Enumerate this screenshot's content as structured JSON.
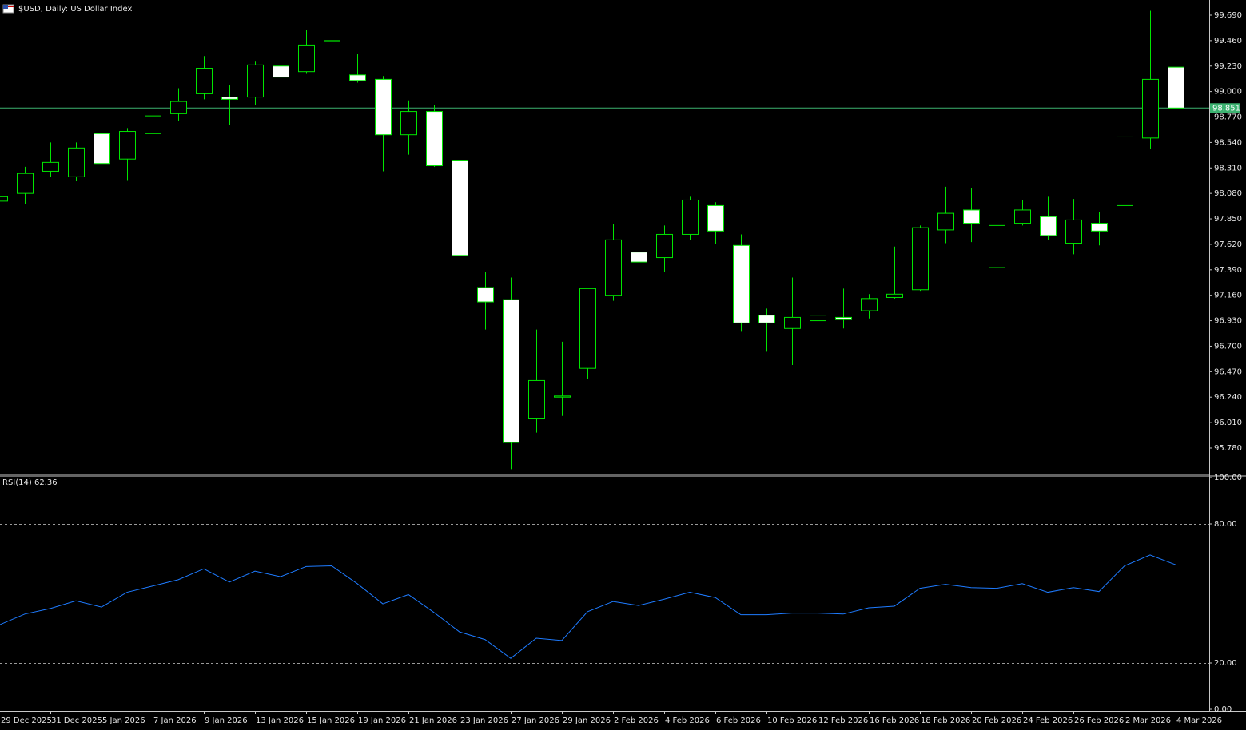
{
  "chart_data": [
    {
      "type": "candlestick",
      "title": "$USD, Daily:  US Dollar Index",
      "categories": [
        "29 Dec 2025",
        null,
        "31 Dec 2025",
        null,
        "5 Jan 2026",
        null,
        "7 Jan 2026",
        null,
        "9 Jan 2026",
        null,
        "13 Jan 2026",
        null,
        "15 Jan 2026",
        null,
        "19 Jan 2026",
        null,
        "21 Jan 2026",
        null,
        "23 Jan 2026",
        null,
        "27 Jan 2026",
        null,
        "29 Jan 2026",
        null,
        "2 Feb 2026",
        null,
        "4 Feb 2026",
        null,
        "6 Feb 2026",
        null,
        "10 Feb 2026",
        null,
        "12 Feb 2026",
        null,
        "16 Feb 2026",
        null,
        "18 Feb 2026",
        null,
        "20 Feb 2026",
        null,
        "24 Feb 2026",
        null,
        "26 Feb 2026",
        null,
        "2 Mar 2026",
        null,
        "4 Mar 2026"
      ],
      "open": [
        98.01,
        98.08,
        98.28,
        98.23,
        98.62,
        98.39,
        98.62,
        98.8,
        98.98,
        98.95,
        98.95,
        99.23,
        99.18,
        99.45,
        99.15,
        99.11,
        98.61,
        98.82,
        98.38,
        97.23,
        97.12,
        96.05,
        96.24,
        96.5,
        97.16,
        97.55,
        97.5,
        97.71,
        97.97,
        97.61,
        96.98,
        96.86,
        96.93,
        96.96,
        97.02,
        97.14,
        97.21,
        97.75,
        97.93,
        97.41,
        97.81,
        97.87,
        97.63,
        97.81,
        97.97,
        98.58,
        99.22
      ],
      "high": [
        98.06,
        98.32,
        98.54,
        98.54,
        98.91,
        98.67,
        98.8,
        99.03,
        99.32,
        99.06,
        99.27,
        99.29,
        99.56,
        99.55,
        99.34,
        99.14,
        98.92,
        98.88,
        98.52,
        97.37,
        97.32,
        96.85,
        96.74,
        97.23,
        97.8,
        97.74,
        97.79,
        98.05,
        98.0,
        97.71,
        97.04,
        97.32,
        97.14,
        97.22,
        97.17,
        97.6,
        97.79,
        98.14,
        98.13,
        97.89,
        98.02,
        98.05,
        98.03,
        97.91,
        98.81,
        99.73,
        99.38
      ],
      "low": [
        97.99,
        97.98,
        98.23,
        98.19,
        98.29,
        98.2,
        98.54,
        98.73,
        98.93,
        98.7,
        98.88,
        98.98,
        99.16,
        99.24,
        99.08,
        98.28,
        98.43,
        98.32,
        97.48,
        96.85,
        95.59,
        95.92,
        96.07,
        96.4,
        97.11,
        97.35,
        97.37,
        97.66,
        97.62,
        96.83,
        96.65,
        96.53,
        96.8,
        96.86,
        96.95,
        97.13,
        97.2,
        97.63,
        97.64,
        97.4,
        97.79,
        97.66,
        97.53,
        97.61,
        97.8,
        98.48,
        98.75
      ],
      "close": [
        98.05,
        98.26,
        98.36,
        98.49,
        98.35,
        98.64,
        98.78,
        98.91,
        99.21,
        98.93,
        99.24,
        99.13,
        99.42,
        99.46,
        99.1,
        98.61,
        98.82,
        98.33,
        97.52,
        97.1,
        95.83,
        96.39,
        96.25,
        97.22,
        97.66,
        97.46,
        97.71,
        98.02,
        97.74,
        96.91,
        96.91,
        96.96,
        96.98,
        96.94,
        97.13,
        97.17,
        97.77,
        97.9,
        97.81,
        97.79,
        97.93,
        97.7,
        97.84,
        97.74,
        98.59,
        99.11,
        98.851
      ],
      "ylim": [
        95.549,
        99.827
      ],
      "yticks": [
        {
          "value": 99.69,
          "label": "99.690"
        },
        {
          "value": 99.46,
          "label": "99.460"
        },
        {
          "value": 99.23,
          "label": "99.230"
        },
        {
          "value": 99.0,
          "label": "99.000"
        },
        {
          "value": 98.77,
          "label": "98.770"
        },
        {
          "value": 98.54,
          "label": "98.540"
        },
        {
          "value": 98.31,
          "label": "98.310"
        },
        {
          "value": 98.08,
          "label": "98.080"
        },
        {
          "value": 97.85,
          "label": "97.850"
        },
        {
          "value": 97.62,
          "label": "97.620"
        },
        {
          "value": 97.39,
          "label": "97.390"
        },
        {
          "value": 97.16,
          "label": "97.160"
        },
        {
          "value": 96.93,
          "label": "96.930"
        },
        {
          "value": 96.7,
          "label": "96.700"
        },
        {
          "value": 96.47,
          "label": "96.470"
        },
        {
          "value": 96.24,
          "label": "96.240"
        },
        {
          "value": 96.01,
          "label": "96.010"
        },
        {
          "value": 95.78,
          "label": "95.780"
        }
      ],
      "last_price": 98.851,
      "bull_color": "#000000",
      "bear_color": "#ffffff",
      "outline_color": "#00e600",
      "last_price_color": "#3cb371"
    },
    {
      "type": "line",
      "title": "RSI(14) 62.36",
      "values": [
        36.4,
        41.1,
        43.5,
        46.8,
        44.1,
        50.5,
        53.2,
        55.9,
        60.6,
        54.9,
        59.6,
        57.2,
        61.6,
        61.9,
        54.2,
        45.5,
        49.5,
        41.8,
        33.4,
        30.1,
        22.0,
        30.7,
        29.7,
        42.1,
        46.5,
        44.8,
        47.5,
        50.5,
        48.2,
        40.8,
        40.8,
        41.5,
        41.5,
        41.1,
        43.8,
        44.5,
        52.2,
        53.9,
        52.5,
        52.2,
        54.2,
        50.5,
        52.5,
        50.8,
        61.9,
        66.6,
        62.36
      ],
      "color": "#1e7bff",
      "ylim": [
        0,
        100
      ],
      "yticks": [
        {
          "value": 100,
          "label": "100.00"
        },
        {
          "value": 80,
          "label": "80.00"
        },
        {
          "value": 20,
          "label": "20.00"
        },
        {
          "value": 0,
          "label": "0.00"
        }
      ],
      "levels": [
        80,
        20
      ]
    }
  ]
}
